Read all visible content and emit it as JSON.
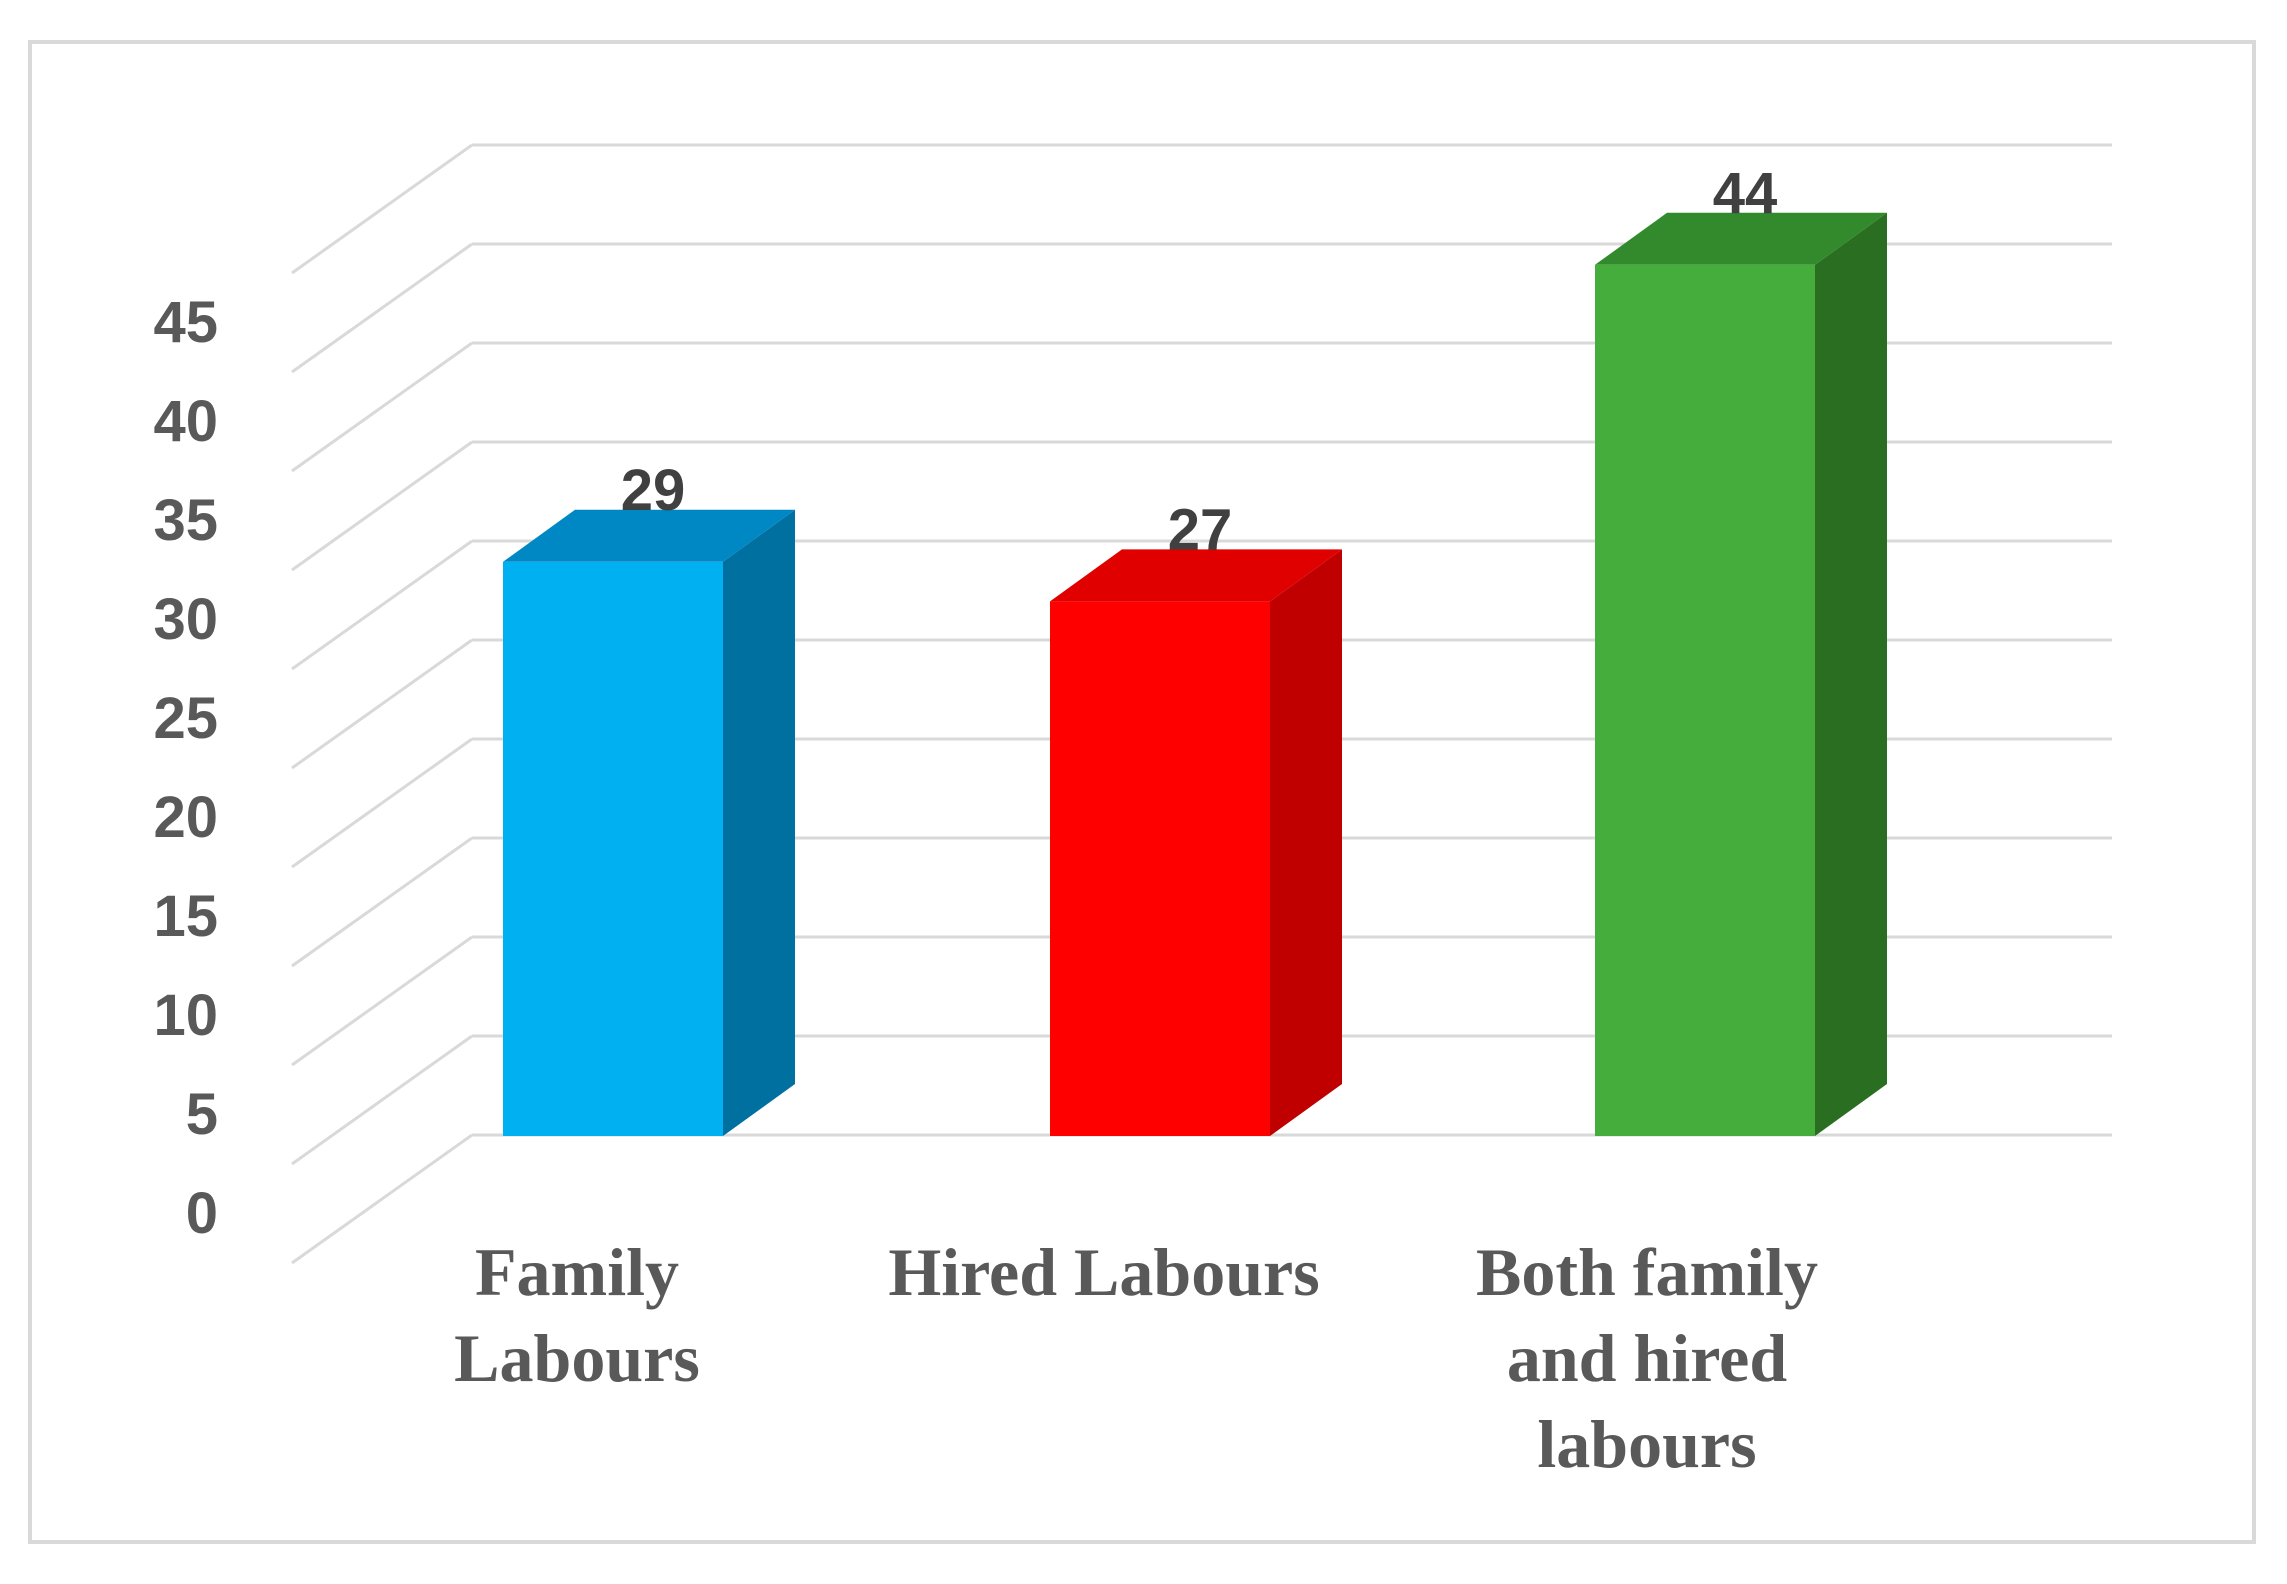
{
  "chart_data": {
    "type": "bar",
    "categories": [
      [
        "Family",
        "Labours"
      ],
      [
        "Hired Labours"
      ],
      [
        "Both family",
        "and hired",
        "labours"
      ]
    ],
    "values": [
      29,
      27,
      44
    ],
    "data_labels": [
      "29",
      "27",
      "44"
    ],
    "yticks": [
      "0",
      "5",
      "10",
      "15",
      "20",
      "25",
      "30",
      "35",
      "40",
      "45"
    ],
    "ylim": [
      0,
      50
    ],
    "grid": true,
    "three_d": true,
    "colors": [
      {
        "front": "#00b0f0",
        "side": "#0070a0",
        "top": "#0088c4"
      },
      {
        "front": "#ff0000",
        "side": "#c00000",
        "top": "#e00000"
      },
      {
        "front": "#45ad3c",
        "side": "#2a6e22",
        "top": "#338a2d"
      }
    ],
    "grid_color": "#d9d9d9"
  }
}
